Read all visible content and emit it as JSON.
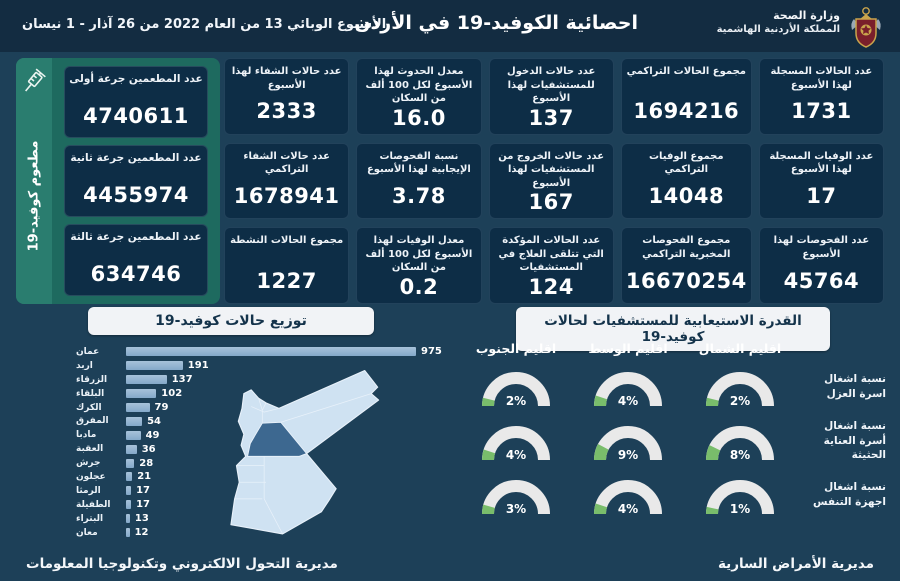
{
  "header": {
    "ministry_line1": "وزارة الصحة",
    "ministry_line2": "المملكة الأردنية الهاشمية",
    "title": "احصائية الكوفيد-19 في الأردن",
    "subtitle": "الأسبوع الوبائي  13 من العام 2022 من  26 آذار - 1 نيسان"
  },
  "colors": {
    "background": "#1d4058",
    "header_bar": "#132c41",
    "card": "#0d2d46",
    "vaccine_panel": "#1e6a5f",
    "vaccine_strip": "#2a7d6f",
    "bar": "#8fb3d3",
    "gauge_base": "#e9e9e9",
    "gauge_green": "#79bd6b",
    "map_light": "#cfe2f2",
    "map_dark": "#3d6890",
    "pill_bg": "#f1f3f6",
    "pill_text": "#14334b"
  },
  "stats": {
    "cards": [
      {
        "label": "عدد الحالات المسجلة لهذا الأسبوع",
        "value": "1731"
      },
      {
        "label": "مجموع الحالات التراكمي",
        "value": "1694216"
      },
      {
        "label": "عدد حالات الدخول للمستشفيات لهذا الأسبوع",
        "value": "137"
      },
      {
        "label": "معدل الحدوث لهذا الأسبوع لكل 100 ألف من السكان",
        "value": "16.0"
      },
      {
        "label": "عدد حالات الشفاء لهذا الأسبوع",
        "value": "2333"
      },
      {
        "label": "عدد الوفيات المسجلة لهذا الأسبوع",
        "value": "17"
      },
      {
        "label": "مجموع الوفيات التراكمي",
        "value": "14048"
      },
      {
        "label": "عدد حالات الخروج من المستشفيات لهذا الأسبوع",
        "value": "167"
      },
      {
        "label": "نسبة الفحوصات الإيجابية لهذا الأسبوع",
        "value": "3.78"
      },
      {
        "label": "عدد حالات الشفاء التراكمي",
        "value": "1678941"
      },
      {
        "label": "عدد الفحوصات لهذا الأسبوع",
        "value": "45764"
      },
      {
        "label": "مجموع الفحوصات المخبرية التراكمي",
        "value": "16670254"
      },
      {
        "label": "عدد الحالات المؤكدة التي تتلقى العلاج في المستشفيات",
        "value": "124"
      },
      {
        "label": "معدل الوفيات لهذا الأسبوع لكل 100 ألف من السكان",
        "value": "0.2"
      },
      {
        "label": "مجموع الحالات النشطة",
        "value": "1227"
      }
    ]
  },
  "vaccine": {
    "side_label": "مطعوم كوفيد-19",
    "cards": [
      {
        "label": "عدد المطعمين جرعة أولى",
        "value": "4740611"
      },
      {
        "label": "عدد المطعمين جرعة ثانية",
        "value": "4455974"
      },
      {
        "label": "عدد المطعمين جرعة ثالثة",
        "value": "634746"
      }
    ]
  },
  "distribution": {
    "header": "توزيع حالات كوفيد-19",
    "map_dark_region": "عمان",
    "bars": [
      {
        "name": "عمان",
        "value": 975
      },
      {
        "name": "اربد",
        "value": 191
      },
      {
        "name": "الزرقاء",
        "value": 137
      },
      {
        "name": "البلقاء",
        "value": 102
      },
      {
        "name": "الكرك",
        "value": 79
      },
      {
        "name": "المفرق",
        "value": 54
      },
      {
        "name": "مادبا",
        "value": 49
      },
      {
        "name": "العقبة",
        "value": 36
      },
      {
        "name": "جرش",
        "value": 28
      },
      {
        "name": "عجلون",
        "value": 21
      },
      {
        "name": "الرمثا",
        "value": 17
      },
      {
        "name": "الطفيلة",
        "value": 17
      },
      {
        "name": "البتراء",
        "value": 13
      },
      {
        "name": "معان",
        "value": 12
      }
    ],
    "max": 975
  },
  "capacity": {
    "header": "القدرة الاستيعابية للمستشفيات لحالات كوفيد-19",
    "regions": [
      "اقليم الجنوب",
      "اقليم الوسط",
      "اقليم الشمال"
    ],
    "rows": [
      {
        "label": "نسبة اشغال اسرة العزل",
        "values": [
          2,
          4,
          2
        ]
      },
      {
        "label": "نسبة اشغال أسرة العناية الحثيثة",
        "values": [
          4,
          9,
          8
        ]
      },
      {
        "label": "نسبة اشغال اجهزة التنفس",
        "values": [
          3,
          4,
          1
        ]
      }
    ]
  },
  "footer": {
    "left": "مديرية التحول الالكتروني وتكنولوجيا المعلومات",
    "right": "مديرية الأمراض السارية"
  },
  "chart_data": [
    {
      "type": "bar",
      "orientation": "horizontal",
      "title": "توزيع حالات كوفيد-19",
      "categories": [
        "عمان",
        "اربد",
        "الزرقاء",
        "البلقاء",
        "الكرك",
        "المفرق",
        "مادبا",
        "العقبة",
        "جرش",
        "عجلون",
        "الرمثا",
        "الطفيلة",
        "البتراء",
        "معان"
      ],
      "values": [
        975,
        191,
        137,
        102,
        79,
        54,
        49,
        36,
        28,
        21,
        17,
        17,
        13,
        12
      ],
      "xlabel": "",
      "ylabel": "",
      "xlim": [
        0,
        975
      ],
      "grid": false,
      "legend": false
    },
    {
      "type": "table",
      "style": "semicircle-gauges",
      "title": "القدرة الاستيعابية للمستشفيات لحالات كوفيد-19",
      "columns": [
        "اقليم الجنوب",
        "اقليم الوسط",
        "اقليم الشمال"
      ],
      "rows": [
        {
          "label": "نسبة اشغال اسرة العزل",
          "values_pct": [
            2,
            4,
            2
          ]
        },
        {
          "label": "نسبة اشغال أسرة العناية الحثيثة",
          "values_pct": [
            4,
            9,
            8
          ]
        },
        {
          "label": "نسبة اشغال اجهزة التنفس",
          "values_pct": [
            3,
            4,
            1
          ]
        }
      ]
    }
  ]
}
